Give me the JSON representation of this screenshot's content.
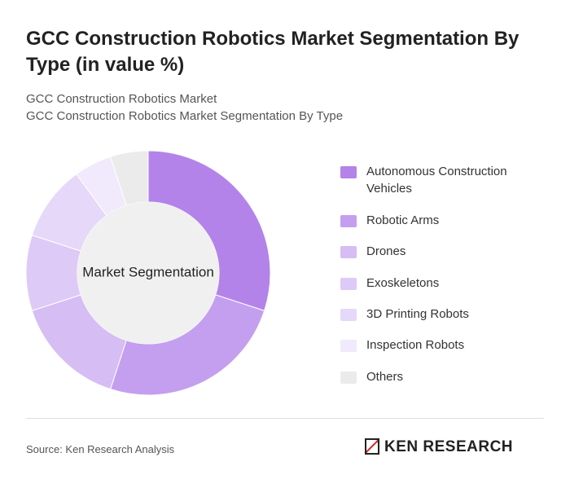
{
  "chart_data": {
    "type": "donut",
    "title": "GCC Construction Robotics Market Segmentation By Type (in value %)",
    "subtitle": [
      "GCC Construction Robotics Market",
      "GCC Construction Robotics Market Segmentation By Type"
    ],
    "center_label": "Market Segmentation",
    "categories": [
      "Autonomous Construction Vehicles",
      "Robotic Arms",
      "Drones",
      "Exoskeletons",
      "3D Printing Robots",
      "Inspection Robots",
      "Others"
    ],
    "values": [
      30,
      25,
      15,
      10,
      10,
      5,
      5
    ],
    "colors": [
      "#b383ea",
      "#c49ff0",
      "#d6bdf4",
      "#decaf6",
      "#e6d8f9",
      "#f1e9fc",
      "#ebebeb"
    ]
  },
  "footer": {
    "source": "Source: Ken Research Analysis",
    "logo": "KEN RESEARCH"
  }
}
